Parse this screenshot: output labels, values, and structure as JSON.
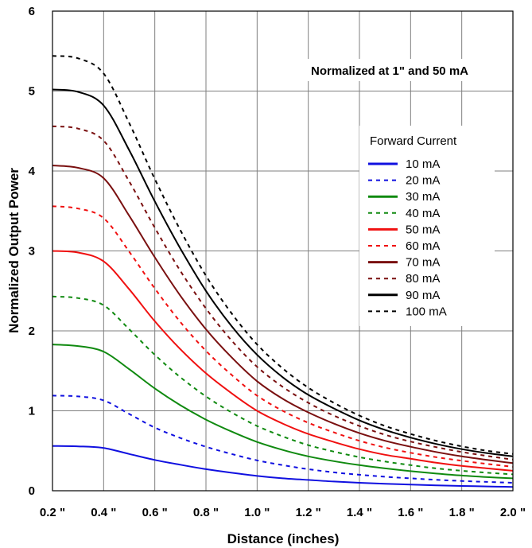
{
  "chart_data": {
    "type": "line",
    "title": "",
    "annotation": "Normalized at 1\" and 50 mA",
    "xlabel": "Distance (inches)",
    "ylabel": "Normalized Output Power",
    "xlim": [
      0.2,
      2.0
    ],
    "ylim": [
      0,
      6
    ],
    "x_ticks": [
      0.2,
      0.4,
      0.6,
      0.8,
      1.0,
      1.2,
      1.4,
      1.6,
      1.8,
      2.0
    ],
    "x_tick_labels": [
      "0.2 \"",
      "0.4 \"",
      "0.6 \"",
      "0.8 \"",
      "1.0 \"",
      "1.2 \"",
      "1.4 \"",
      "1.6 \"",
      "1.8 \"",
      "2.0 \""
    ],
    "y_ticks": [
      0,
      1,
      2,
      3,
      4,
      5,
      6
    ],
    "y_tick_labels": [
      "0",
      "1",
      "2",
      "3",
      "4",
      "5",
      "6"
    ],
    "grid": true,
    "legend_title": "Forward Current",
    "legend_position": "right",
    "x": [
      0.2,
      0.3,
      0.4,
      0.5,
      0.6,
      0.7,
      0.8,
      0.9,
      1.0,
      1.1,
      1.2,
      1.3,
      1.4,
      1.5,
      1.6,
      1.7,
      1.8,
      1.9,
      2.0
    ],
    "series": [
      {
        "name": "10 mA",
        "color": "#1010e0",
        "dash": "solid",
        "values": [
          0.56,
          0.555,
          0.535,
          0.46,
          0.385,
          0.325,
          0.27,
          0.225,
          0.185,
          0.155,
          0.135,
          0.115,
          0.1,
          0.088,
          0.077,
          0.068,
          0.06,
          0.054,
          0.048
        ]
      },
      {
        "name": "20 mA",
        "color": "#1010e0",
        "dash": "dashed",
        "values": [
          1.19,
          1.18,
          1.13,
          0.96,
          0.79,
          0.66,
          0.55,
          0.46,
          0.38,
          0.32,
          0.27,
          0.23,
          0.2,
          0.175,
          0.155,
          0.137,
          0.122,
          0.11,
          0.1
        ]
      },
      {
        "name": "30 mA",
        "color": "#108a10",
        "dash": "solid",
        "values": [
          1.83,
          1.81,
          1.74,
          1.52,
          1.28,
          1.07,
          0.89,
          0.74,
          0.61,
          0.51,
          0.43,
          0.37,
          0.32,
          0.28,
          0.245,
          0.215,
          0.19,
          0.17,
          0.155
        ]
      },
      {
        "name": "40 mA",
        "color": "#108a10",
        "dash": "dashed",
        "values": [
          2.43,
          2.41,
          2.32,
          2.02,
          1.7,
          1.42,
          1.18,
          0.98,
          0.81,
          0.68,
          0.57,
          0.49,
          0.42,
          0.365,
          0.32,
          0.28,
          0.25,
          0.225,
          0.205
        ]
      },
      {
        "name": "50 mA",
        "color": "#f01010",
        "dash": "solid",
        "values": [
          3.0,
          2.98,
          2.87,
          2.52,
          2.12,
          1.77,
          1.47,
          1.22,
          1.0,
          0.84,
          0.71,
          0.61,
          0.52,
          0.45,
          0.4,
          0.35,
          0.31,
          0.28,
          0.25
        ]
      },
      {
        "name": "60 mA",
        "color": "#f01010",
        "dash": "dashed",
        "values": [
          3.56,
          3.53,
          3.41,
          2.99,
          2.53,
          2.11,
          1.75,
          1.45,
          1.19,
          1.0,
          0.85,
          0.73,
          0.625,
          0.54,
          0.475,
          0.42,
          0.375,
          0.335,
          0.3
        ]
      },
      {
        "name": "70 mA",
        "color": "#7a1010",
        "dash": "solid",
        "values": [
          4.07,
          4.04,
          3.91,
          3.44,
          2.92,
          2.44,
          2.02,
          1.67,
          1.37,
          1.15,
          0.98,
          0.84,
          0.72,
          0.625,
          0.55,
          0.485,
          0.43,
          0.385,
          0.345
        ]
      },
      {
        "name": "80 mA",
        "color": "#7a1010",
        "dash": "dashed",
        "values": [
          4.56,
          4.53,
          4.38,
          3.87,
          3.29,
          2.75,
          2.28,
          1.88,
          1.55,
          1.3,
          1.1,
          0.94,
          0.81,
          0.7,
          0.615,
          0.545,
          0.485,
          0.435,
          0.39
        ]
      },
      {
        "name": "90 mA",
        "color": "#000000",
        "dash": "solid",
        "values": [
          5.02,
          4.99,
          4.82,
          4.26,
          3.62,
          3.03,
          2.5,
          2.06,
          1.7,
          1.42,
          1.2,
          1.03,
          0.88,
          0.76,
          0.665,
          0.585,
          0.52,
          0.47,
          0.43
        ]
      },
      {
        "name": "100 mA",
        "color": "#000000",
        "dash": "dashed",
        "values": [
          5.44,
          5.41,
          5.22,
          4.6,
          3.9,
          3.26,
          2.69,
          2.22,
          1.83,
          1.53,
          1.29,
          1.1,
          0.94,
          0.81,
          0.71,
          0.625,
          0.555,
          0.5,
          0.46
        ]
      }
    ]
  }
}
